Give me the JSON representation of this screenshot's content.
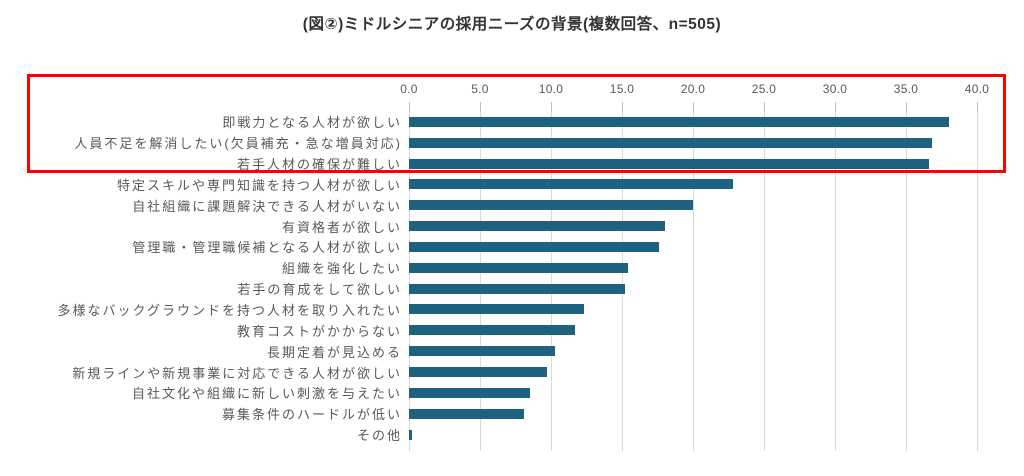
{
  "title": "(図②)ミドルシニアの採用ニーズの背景(複数回答、n=505)",
  "colors": {
    "bar": "#1F6180",
    "gridline": "#D9D9D9",
    "tick": "#BFBFBF",
    "axis_text": "#595959",
    "category_text": "#595959",
    "title_text": "#333333",
    "highlight_box": "#FF0000",
    "background": "#FFFFFF"
  },
  "chart_data": {
    "type": "bar",
    "orientation": "horizontal",
    "title": "(図②)ミドルシニアの採用ニーズの背景(複数回答、n=505)",
    "xlabel": "",
    "ylabel": "",
    "xlim": [
      0.0,
      40.0
    ],
    "x_tick_labels": [
      "0.0",
      "5.0",
      "10.0",
      "15.0",
      "20.0",
      "25.0",
      "30.0",
      "35.0",
      "40.0"
    ],
    "x_tick_values": [
      0,
      5,
      10,
      15,
      20,
      25,
      30,
      35,
      40
    ],
    "grid": true,
    "axis_position": "top",
    "legend": false,
    "categories": [
      "即戦力となる人材が欲しい",
      "人員不足を解消したい(欠員補充・急な増員対応)",
      "若手人材の確保が難しい",
      "特定スキルや専門知識を持つ人材が欲しい",
      "自社組織に課題解決できる人材がいない",
      "有資格者が欲しい",
      "管理職・管理職候補となる人材が欲しい",
      "組織を強化したい",
      "若手の育成をして欲しい",
      "多様なバックグラウンドを持つ人材を取り入れたい",
      "教育コストがかからない",
      "長期定着が見込める",
      "新規ラインや新規事業に対応できる人材が欲しい",
      "自社文化や組織に新しい刺激を与えたい",
      "募集条件のハードルが低い",
      "その他"
    ],
    "values": [
      38.0,
      36.8,
      36.6,
      22.8,
      20.0,
      18.0,
      17.6,
      15.4,
      15.2,
      12.3,
      11.7,
      10.3,
      9.7,
      8.5,
      8.1,
      0.2
    ],
    "highlighted_row_indices": [
      0,
      1,
      2
    ]
  }
}
